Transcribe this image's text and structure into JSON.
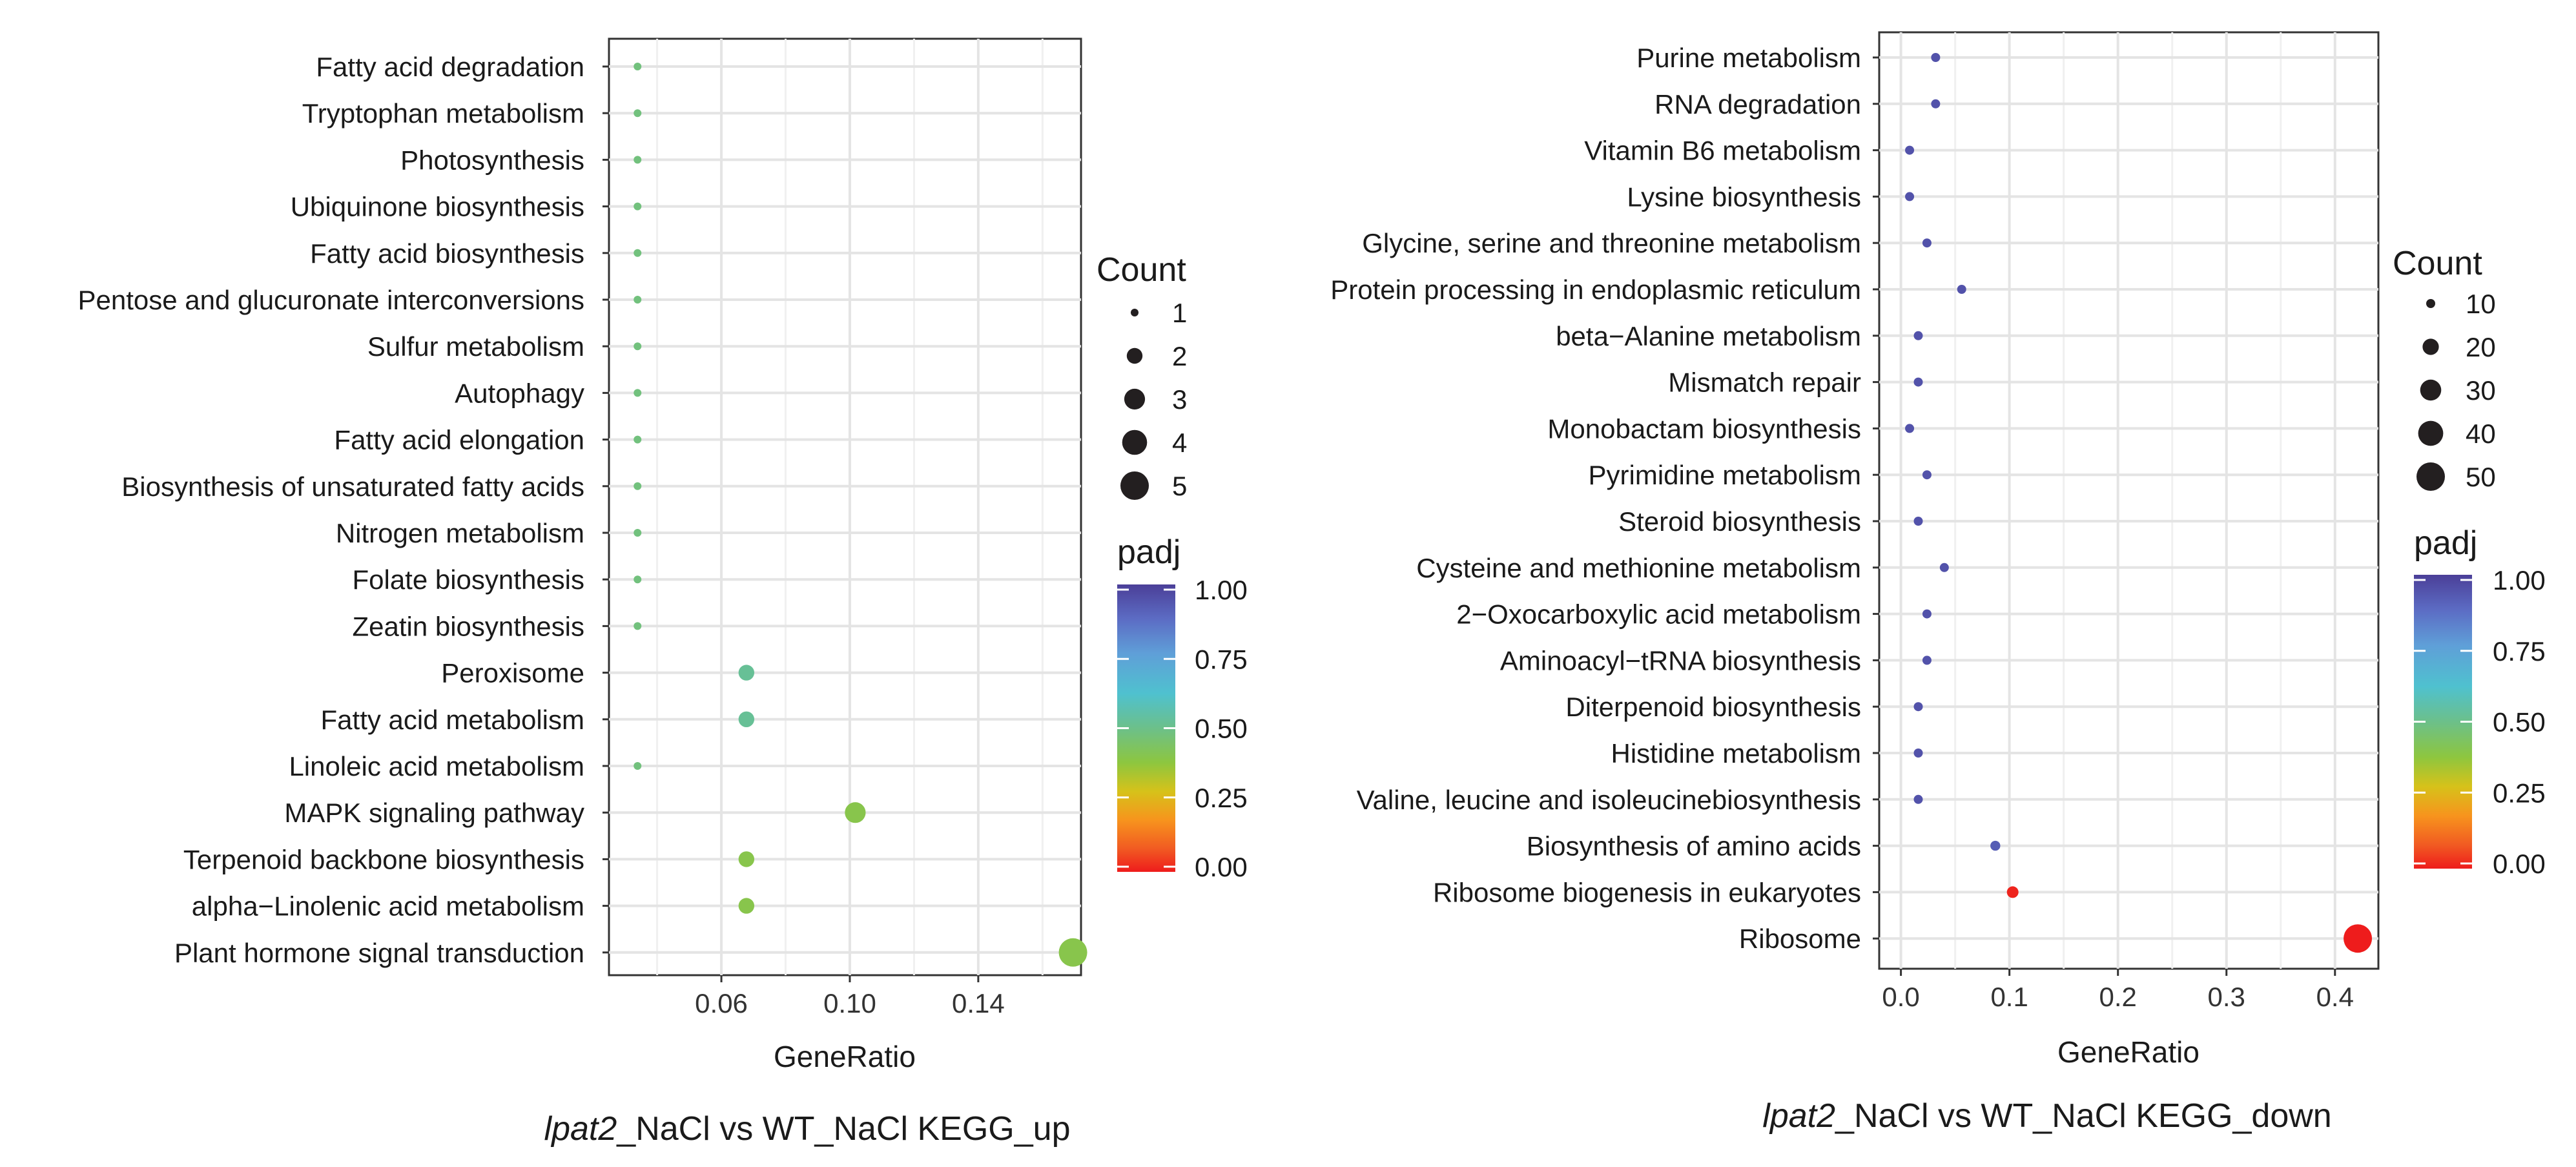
{
  "chart_data": [
    {
      "type": "scatter",
      "title": "",
      "caption": {
        "italic": "lpat2",
        "rest": "_NaCl vs WT_NaCl KEGG_up"
      },
      "xlabel": "GeneRatio",
      "ylabel": "",
      "xlim": [
        0.025,
        0.172
      ],
      "xticks": [
        0.06,
        0.1,
        0.14
      ],
      "xtick_labels": [
        "0.06",
        "0.10",
        "0.14"
      ],
      "grid": true,
      "categories": [
        "Fatty acid degradation",
        "Tryptophan metabolism",
        "Photosynthesis",
        "Ubiquinone biosynthesis",
        "Fatty acid biosynthesis",
        "Pentose and glucuronate interconversions",
        "Sulfur metabolism",
        "Autophagy",
        "Fatty acid elongation",
        "Biosynthesis of unsaturated fatty acids",
        "Nitrogen metabolism",
        "Folate biosynthesis",
        "Zeatin biosynthesis",
        "Peroxisome",
        "Fatty acid metabolism",
        "Linoleic acid metabolism",
        "MAPK signaling pathway",
        "Terpenoid backbone biosynthesis",
        "alpha−Linolenic acid metabolism",
        "Plant hormone signal transduction"
      ],
      "gene_ratio": [
        0.0339,
        0.0339,
        0.0339,
        0.0339,
        0.0339,
        0.0339,
        0.0339,
        0.0339,
        0.0339,
        0.0339,
        0.0339,
        0.0339,
        0.0339,
        0.0678,
        0.0678,
        0.0339,
        0.1017,
        0.0678,
        0.0678,
        0.1695
      ],
      "count": [
        1,
        1,
        1,
        1,
        1,
        1,
        1,
        1,
        1,
        1,
        1,
        1,
        1,
        2,
        2,
        1,
        3,
        2,
        2,
        5
      ],
      "padj": [
        0.48,
        0.48,
        0.48,
        0.48,
        0.48,
        0.48,
        0.48,
        0.48,
        0.48,
        0.48,
        0.48,
        0.48,
        0.48,
        0.52,
        0.52,
        0.48,
        0.4,
        0.4,
        0.4,
        0.4
      ],
      "legend": {
        "count_title": "Count",
        "count_breaks": [
          1,
          2,
          3,
          4,
          5
        ],
        "count_labels": [
          "1",
          "2",
          "3",
          "4",
          "5"
        ],
        "padj_title": "padj",
        "padj_breaks": [
          "1.00",
          "0.75",
          "0.50",
          "0.25",
          "0.00"
        ]
      }
    },
    {
      "type": "scatter",
      "title": "",
      "caption": {
        "italic": "lpat2",
        "rest": "_NaCl vs WT_NaCl KEGG_down"
      },
      "xlabel": "GeneRatio",
      "ylabel": "",
      "xlim": [
        -0.02,
        0.44
      ],
      "xticks": [
        0.0,
        0.1,
        0.2,
        0.3,
        0.4
      ],
      "xtick_labels": [
        "0.0",
        "0.1",
        "0.2",
        "0.3",
        "0.4"
      ],
      "grid": true,
      "categories": [
        "Purine metabolism",
        "RNA degradation",
        "Vitamin B6 metabolism",
        "Lysine biosynthesis",
        "Glycine, serine and threonine metabolism",
        "Protein processing in endoplasmic reticulum",
        "beta−Alanine metabolism",
        "Mismatch repair",
        "Monobactam biosynthesis",
        "Pyrimidine metabolism",
        "Steroid biosynthesis",
        "Cysteine and methionine metabolism",
        "2−Oxocarboxylic acid metabolism",
        "Aminoacyl−tRNA biosynthesis",
        "Diterpenoid biosynthesis",
        "Histidine metabolism",
        "Valine, leucine and isoleucinebiosynthesis",
        "Biosynthesis of amino acids",
        "Ribosome biogenesis in eukaryotes",
        "Ribosome"
      ],
      "gene_ratio": [
        0.032,
        0.032,
        0.008,
        0.008,
        0.024,
        0.056,
        0.016,
        0.016,
        0.008,
        0.024,
        0.016,
        0.04,
        0.024,
        0.024,
        0.016,
        0.016,
        0.016,
        0.087,
        0.103,
        0.421
      ],
      "count": [
        4,
        4,
        1,
        1,
        3,
        7,
        2,
        2,
        1,
        3,
        2,
        5,
        3,
        3,
        2,
        2,
        2,
        11,
        13,
        53
      ],
      "padj": [
        0.95,
        0.95,
        0.95,
        0.95,
        0.95,
        0.95,
        0.95,
        0.95,
        0.95,
        0.95,
        0.95,
        0.95,
        0.95,
        0.95,
        0.95,
        0.95,
        0.95,
        0.92,
        0.01,
        0.0
      ],
      "legend": {
        "count_title": "Count",
        "count_breaks": [
          10,
          20,
          30,
          40,
          50
        ],
        "count_labels": [
          "10",
          "20",
          "30",
          "40",
          "50"
        ],
        "padj_title": "padj",
        "padj_breaks": [
          "1.00",
          "0.75",
          "0.50",
          "0.25",
          "0.00"
        ]
      }
    }
  ]
}
